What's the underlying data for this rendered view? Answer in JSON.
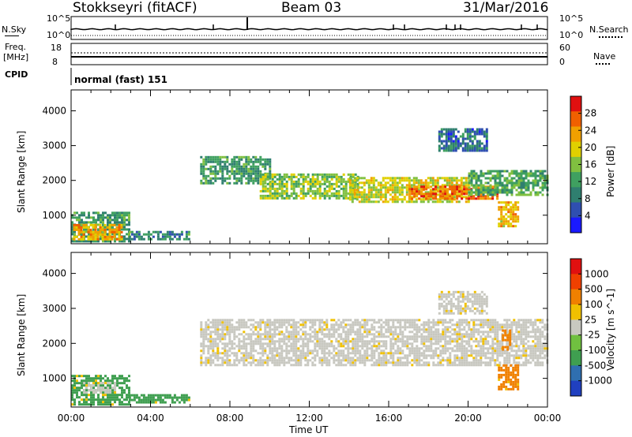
{
  "header": {
    "station": "Stokkseyri (fitACF)",
    "beam": "Beam 03",
    "date": "31/Mar/2016"
  },
  "aux_panels": {
    "nsky": {
      "label": "N.Sky",
      "left_ticks": [
        "10^5",
        "10^0"
      ],
      "right_ticks": [
        "10^5",
        "10^0"
      ],
      "right_label": "N.Search"
    },
    "freq": {
      "label_top": "Freq.",
      "label_bottom": "[MHz]",
      "left_ticks": [
        "18",
        "8"
      ],
      "right_ticks": [
        "60",
        "0"
      ],
      "right_label": "Nave"
    },
    "cpid": {
      "label": "CPID",
      "mode_text": "normal (fast) 151"
    }
  },
  "chart_data": [
    {
      "type": "heatmap",
      "name": "power",
      "xlabel": "",
      "ylabel": "Slant Range [km]",
      "x_ticks": [
        "00:00",
        "04:00",
        "08:00",
        "12:00",
        "16:00",
        "20:00",
        "00:00"
      ],
      "y_ticks": [
        1000,
        2000,
        3000,
        4000
      ],
      "ylim": [
        180,
        4600
      ],
      "xlim_hours": [
        0,
        24
      ],
      "colorbar": {
        "label": "Power [dB]",
        "ticks": [
          4,
          8,
          12,
          16,
          20,
          24,
          28
        ],
        "range": [
          0,
          32
        ],
        "colors": [
          "#1a1aff",
          "#2f4fb0",
          "#2f7f6f",
          "#3fa060",
          "#80c040",
          "#e0d000",
          "#f0a000",
          "#f06000",
          "#e01010"
        ]
      },
      "regions": [
        {
          "t0": 0.0,
          "t1": 2.9,
          "r0": 250,
          "r1": 1100,
          "level": 0.35
        },
        {
          "t0": 0.1,
          "t1": 2.5,
          "r0": 300,
          "r1": 750,
          "level": 0.75
        },
        {
          "t0": 2.9,
          "t1": 6.0,
          "r0": 300,
          "r1": 550,
          "level": 0.3
        },
        {
          "t0": 6.5,
          "t1": 10.0,
          "r0": 1900,
          "r1": 2700,
          "level": 0.35
        },
        {
          "t0": 9.5,
          "t1": 14.5,
          "r0": 1500,
          "r1": 2200,
          "level": 0.5
        },
        {
          "t0": 14.0,
          "t1": 20.0,
          "r0": 1400,
          "r1": 2100,
          "level": 0.6
        },
        {
          "t0": 17.0,
          "t1": 21.5,
          "r0": 1500,
          "r1": 1850,
          "level": 0.85
        },
        {
          "t0": 20.0,
          "t1": 24.0,
          "r0": 1600,
          "r1": 2300,
          "level": 0.4
        },
        {
          "t0": 18.5,
          "t1": 21.0,
          "r0": 2850,
          "r1": 3500,
          "level": 0.2
        },
        {
          "t0": 21.5,
          "t1": 22.5,
          "r0": 700,
          "r1": 1400,
          "level": 0.7
        }
      ]
    },
    {
      "type": "heatmap",
      "name": "velocity",
      "xlabel": "Time UT",
      "ylabel": "Slant Range [km]",
      "x_ticks": [
        "00:00",
        "04:00",
        "08:00",
        "12:00",
        "16:00",
        "20:00",
        "00:00"
      ],
      "y_ticks": [
        1000,
        2000,
        3000,
        4000
      ],
      "ylim": [
        180,
        4600
      ],
      "xlim_hours": [
        0,
        24
      ],
      "colorbar": {
        "label": "Velocity [m s^-1]",
        "ticks": [
          "1000",
          "500",
          "100",
          "25",
          "-25",
          "-100",
          "-500",
          "-1000"
        ],
        "colors": [
          "#2040c0",
          "#2f6fb0",
          "#3f9f50",
          "#70c040",
          "#c8c8c0",
          "#f0c000",
          "#f08000",
          "#f04000",
          "#e01010"
        ]
      },
      "regions": [
        {
          "t0": 0.0,
          "t1": 2.9,
          "r0": 250,
          "r1": 1100,
          "class": "green"
        },
        {
          "t0": 0.6,
          "t1": 2.2,
          "r0": 600,
          "r1": 900,
          "class": "grey"
        },
        {
          "t0": 2.9,
          "t1": 6.0,
          "r0": 300,
          "r1": 550,
          "class": "green"
        },
        {
          "t0": 6.5,
          "t1": 24.0,
          "r0": 1400,
          "r1": 2700,
          "class": "grey"
        },
        {
          "t0": 18.5,
          "t1": 21.0,
          "r0": 2850,
          "r1": 3500,
          "class": "grey"
        },
        {
          "t0": 21.5,
          "t1": 22.5,
          "r0": 700,
          "r1": 1400,
          "class": "orange"
        },
        {
          "t0": 21.7,
          "t1": 22.1,
          "r0": 1800,
          "r1": 2400,
          "class": "orange"
        }
      ]
    }
  ]
}
